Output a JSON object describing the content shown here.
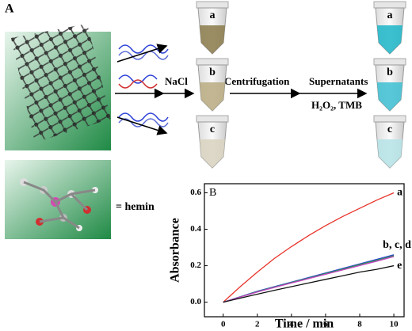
{
  "figure": {
    "panel_a_label": "A",
    "salt_label": "NaCl",
    "centrifugation_label": "Centrifugation",
    "supernatants_label": "Supernatants",
    "reagents_label": "H₂O₂, TMB",
    "hemin_label": "= hemin",
    "left_tube_labels": [
      "a",
      "b",
      "c"
    ],
    "right_tube_labels": [
      "a",
      "b",
      "c"
    ]
  },
  "chart_data": {
    "type": "line",
    "panel_label": "B",
    "xlabel": "Time / min",
    "ylabel": "Absorbance",
    "x": [
      0,
      1,
      2,
      3,
      4,
      5,
      6,
      7,
      8,
      9,
      10
    ],
    "series": [
      {
        "color": "#e8332a",
        "values": [
          0,
          0.085,
          0.165,
          0.24,
          0.305,
          0.365,
          0.42,
          0.47,
          0.515,
          0.56,
          0.6
        ]
      },
      {
        "color": "#2b3fd6",
        "values": [
          0,
          0.03,
          0.06,
          0.085,
          0.11,
          0.135,
          0.16,
          0.185,
          0.21,
          0.235,
          0.26
        ]
      },
      {
        "color": "#2a9a4a",
        "values": [
          0,
          0.029,
          0.058,
          0.083,
          0.108,
          0.132,
          0.157,
          0.181,
          0.206,
          0.23,
          0.255
        ]
      },
      {
        "color": "#c43fc4",
        "values": [
          0,
          0.028,
          0.056,
          0.081,
          0.105,
          0.129,
          0.153,
          0.177,
          0.201,
          0.225,
          0.25
        ]
      },
      {
        "color": "#111111",
        "values": [
          0,
          0.022,
          0.044,
          0.065,
          0.085,
          0.105,
          0.125,
          0.145,
          0.165,
          0.18,
          0.2
        ]
      }
    ],
    "line_labels": [
      "a",
      "b, c, d",
      "e"
    ],
    "xlim": [
      -1.1,
      10.6
    ],
    "ylim": [
      -0.08,
      0.65
    ],
    "xticks": [
      0,
      2,
      4,
      6,
      8,
      10
    ],
    "yticks": [
      {
        "value": 0,
        "label": "0.0"
      },
      0.2,
      0.4,
      0.6
    ]
  }
}
